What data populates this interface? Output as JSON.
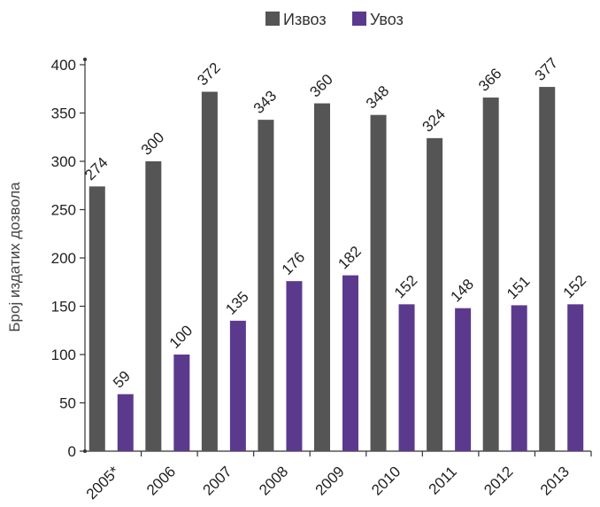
{
  "chart_data": {
    "type": "bar",
    "title": "",
    "xlabel": "",
    "ylabel": "Број издатих дозвола",
    "categories": [
      "2005*",
      "2006",
      "2007",
      "2008",
      "2009",
      "2010",
      "2011",
      "2012",
      "2013"
    ],
    "series": [
      {
        "name": "Извоз",
        "color": "#555555",
        "values": [
          274,
          300,
          372,
          343,
          360,
          348,
          324,
          366,
          377
        ]
      },
      {
        "name": "Увоз",
        "color": "#5b3a8e",
        "values": [
          59,
          100,
          135,
          176,
          182,
          152,
          148,
          151,
          152
        ]
      }
    ],
    "ylim": [
      0,
      400
    ],
    "yticks": [
      0,
      50,
      100,
      150,
      200,
      250,
      300,
      350,
      400
    ],
    "legend_position": "top-center",
    "grid": false
  }
}
